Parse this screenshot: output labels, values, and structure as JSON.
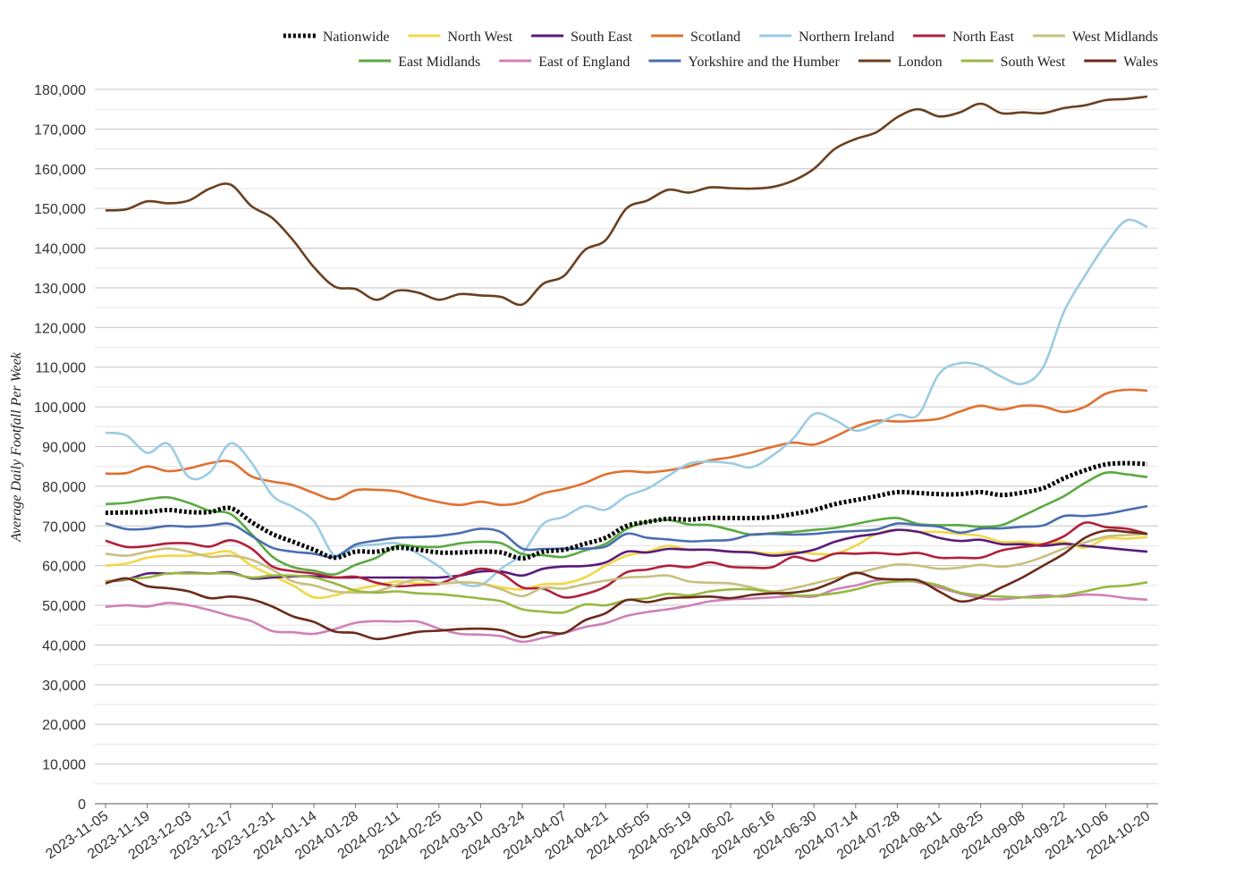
{
  "chart_data": {
    "type": "line",
    "title": "",
    "xlabel": "",
    "ylabel": "Average Daily Footfall Per Week",
    "ylim": [
      0,
      180000
    ],
    "y_ticks": [
      0,
      10000,
      20000,
      30000,
      40000,
      50000,
      60000,
      70000,
      80000,
      90000,
      100000,
      110000,
      120000,
      130000,
      140000,
      150000,
      160000,
      170000,
      180000
    ],
    "y_tick_labels": [
      "0",
      "10,000",
      "20,000",
      "30,000",
      "40,000",
      "50,000",
      "60,000",
      "70,000",
      "80,000",
      "90,000",
      "100,000",
      "110,000",
      "120,000",
      "130,000",
      "140,000",
      "150,000",
      "160,000",
      "170,000",
      "180,000"
    ],
    "x_tick_labels": [
      "2023-11-05",
      "2023-11-19",
      "2023-12-03",
      "2023-12-17",
      "2023-12-31",
      "2024-01-14",
      "2024-01-28",
      "2024-02-11",
      "2024-02-25",
      "2024-03-10",
      "2024-03-24",
      "2024-04-07",
      "2024-04-21",
      "2024-05-05",
      "2024-05-19",
      "2024-06-02",
      "2024-06-16",
      "2024-06-30",
      "2024-07-14",
      "2024-07-28",
      "2024-08-11",
      "2024-08-25",
      "2024-09-08",
      "2024-09-22",
      "2024-10-06",
      "2024-10-20"
    ],
    "grid": true,
    "legend_position": "top",
    "x": [
      "2023-11-05",
      "2023-11-12",
      "2023-11-19",
      "2023-11-26",
      "2023-12-03",
      "2023-12-10",
      "2023-12-17",
      "2023-12-24",
      "2023-12-31",
      "2024-01-07",
      "2024-01-14",
      "2024-01-21",
      "2024-01-28",
      "2024-02-04",
      "2024-02-11",
      "2024-02-18",
      "2024-02-25",
      "2024-03-03",
      "2024-03-10",
      "2024-03-17",
      "2024-03-24",
      "2024-03-31",
      "2024-04-07",
      "2024-04-14",
      "2024-04-21",
      "2024-04-28",
      "2024-05-05",
      "2024-05-12",
      "2024-05-19",
      "2024-05-26",
      "2024-06-02",
      "2024-06-09",
      "2024-06-16",
      "2024-06-23",
      "2024-06-30",
      "2024-07-07",
      "2024-07-14",
      "2024-07-21",
      "2024-07-28",
      "2024-08-04",
      "2024-08-11",
      "2024-08-18",
      "2024-08-25",
      "2024-09-01",
      "2024-09-08",
      "2024-09-15",
      "2024-09-22",
      "2024-09-29",
      "2024-10-06",
      "2024-10-13",
      "2024-10-20"
    ],
    "series": [
      {
        "name": "Nationwide",
        "color": "#000000",
        "dash": true,
        "values": [
          73300,
          73400,
          73500,
          74000,
          73500,
          73500,
          74500,
          71000,
          68000,
          66000,
          64000,
          62000,
          63500,
          63500,
          64500,
          64000,
          63300,
          63300,
          63500,
          63300,
          61800,
          63500,
          64000,
          65500,
          67000,
          70000,
          71000,
          71800,
          71600,
          72000,
          72000,
          72000,
          72200,
          73000,
          74000,
          75500,
          76500,
          77500,
          78500,
          78300,
          78000,
          78000,
          78500,
          77800,
          78400,
          79500,
          82000,
          84000,
          85500,
          85800,
          85600
        ]
      },
      {
        "name": "North West",
        "color": "#f0d848",
        "values": [
          60000,
          60500,
          62000,
          62500,
          62500,
          63000,
          63500,
          60000,
          57500,
          55000,
          52000,
          52500,
          54000,
          55000,
          56000,
          55500,
          55500,
          55800,
          55500,
          54500,
          54000,
          55300,
          55500,
          57000,
          60000,
          62500,
          63500,
          65000,
          64000,
          64000,
          63500,
          63500,
          63000,
          63500,
          63000,
          63000,
          65000,
          68000,
          69000,
          68500,
          68500,
          68000,
          67500,
          66000,
          66000,
          65500,
          66000,
          64500,
          66800,
          66800,
          67200
        ]
      },
      {
        "name": "South East",
        "color": "#5a1a7a",
        "values": [
          56000,
          56500,
          58000,
          58000,
          58200,
          58000,
          58300,
          56800,
          57000,
          57300,
          57300,
          57000,
          57000,
          57000,
          57000,
          57000,
          57000,
          57500,
          58500,
          58500,
          57500,
          59200,
          59800,
          59900,
          60800,
          63500,
          63300,
          64200,
          64000,
          64000,
          63500,
          63300,
          62500,
          63000,
          64000,
          66000,
          67300,
          68000,
          69000,
          68500,
          67000,
          66200,
          66500,
          65400,
          65400,
          65000,
          65500,
          65000,
          64500,
          64000,
          63500
        ]
      },
      {
        "name": "Scotland",
        "color": "#e07030",
        "values": [
          83200,
          83300,
          85000,
          83800,
          84500,
          85800,
          86200,
          82500,
          81200,
          80300,
          78300,
          76700,
          79000,
          79100,
          78700,
          77200,
          76000,
          75300,
          76100,
          75300,
          76000,
          78200,
          79300,
          80800,
          83000,
          83800,
          83500,
          84000,
          85000,
          86500,
          87300,
          88500,
          89900,
          91000,
          90500,
          92500,
          95000,
          96500,
          96300,
          96500,
          97000,
          98800,
          100300,
          99300,
          100300,
          100100,
          98700,
          100000,
          103300,
          104300,
          104100
        ]
      },
      {
        "name": "Northern Ireland",
        "color": "#9ccbe4",
        "values": [
          93500,
          92800,
          88400,
          90700,
          82300,
          83500,
          90800,
          86000,
          77700,
          74800,
          71200,
          62500,
          64800,
          65300,
          65600,
          63000,
          59800,
          55700,
          55100,
          59300,
          63000,
          70500,
          72300,
          75000,
          74100,
          77500,
          79400,
          82600,
          85700,
          86200,
          85800,
          84800,
          87700,
          92000,
          98200,
          96700,
          94000,
          95600,
          98000,
          98000,
          108300,
          111000,
          110400,
          107600,
          105800,
          110000,
          124000,
          133000,
          141000,
          147000,
          145300
        ]
      },
      {
        "name": "North East",
        "color": "#b0203a",
        "values": [
          66300,
          64700,
          64900,
          65600,
          65600,
          64800,
          66400,
          64300,
          59800,
          58600,
          58000,
          57000,
          57200,
          55700,
          54800,
          55100,
          55400,
          57500,
          59200,
          58000,
          54500,
          54200,
          52000,
          52800,
          54700,
          58300,
          59000,
          60000,
          59600,
          60800,
          59700,
          59500,
          59600,
          62200,
          61200,
          63000,
          63000,
          63200,
          62800,
          63200,
          62000,
          62000,
          62000,
          63800,
          64700,
          65400,
          67400,
          70800,
          69700,
          69300,
          68000
        ]
      },
      {
        "name": "West Midlands",
        "color": "#c8c080",
        "values": [
          63000,
          62500,
          63500,
          64300,
          63500,
          62200,
          62500,
          61500,
          59000,
          56000,
          55000,
          53500,
          53200,
          53500,
          55200,
          56500,
          55500,
          55800,
          55500,
          54000,
          52300,
          54400,
          54200,
          55300,
          56200,
          57000,
          57200,
          57500,
          56000,
          55700,
          55500,
          54500,
          53500,
          54300,
          55500,
          56800,
          58000,
          59300,
          60300,
          60000,
          59200,
          59500,
          60200,
          59700,
          60500,
          62200,
          64300,
          65800,
          67300,
          67700,
          68000
        ]
      },
      {
        "name": "East Midlands",
        "color": "#5aaa40",
        "values": [
          75500,
          75800,
          76700,
          77200,
          75800,
          73800,
          73000,
          68000,
          62300,
          59600,
          58700,
          57800,
          60200,
          62000,
          65000,
          64800,
          64700,
          65600,
          66000,
          65600,
          62900,
          62600,
          62200,
          63800,
          65500,
          69200,
          71000,
          71500,
          70400,
          70200,
          69000,
          67800,
          68200,
          68500,
          69000,
          69500,
          70500,
          71500,
          72000,
          70500,
          70200,
          70200,
          69800,
          70200,
          72500,
          75000,
          77500,
          80800,
          83400,
          83000,
          82300
        ]
      },
      {
        "name": "East of England",
        "color": "#d080b8",
        "values": [
          49600,
          50000,
          49700,
          50600,
          50000,
          48800,
          47300,
          46000,
          43500,
          43200,
          42800,
          44000,
          45600,
          46000,
          45900,
          45900,
          44100,
          42800,
          42600,
          42200,
          40800,
          41800,
          43000,
          44500,
          45500,
          47300,
          48300,
          49000,
          49900,
          51000,
          51500,
          51700,
          52000,
          52300,
          52200,
          54000,
          55000,
          56300,
          56500,
          55800,
          54500,
          53000,
          51800,
          51500,
          52000,
          52500,
          52200,
          52700,
          52500,
          51800,
          51400
        ]
      },
      {
        "name": "Yorkshire and the Humber",
        "color": "#4a6eb0",
        "values": [
          70700,
          69200,
          69300,
          70000,
          69800,
          70100,
          70500,
          67500,
          64500,
          63500,
          63000,
          62200,
          65300,
          66300,
          67000,
          67200,
          67500,
          68200,
          69300,
          68400,
          64300,
          64200,
          64300,
          64300,
          64800,
          68000,
          67000,
          66600,
          66100,
          66300,
          66500,
          67800,
          68000,
          67800,
          68000,
          68500,
          68700,
          69100,
          70600,
          70200,
          69800,
          68300,
          69300,
          69400,
          69800,
          70100,
          72500,
          72500,
          73000,
          74000,
          75000
        ]
      },
      {
        "name": "London",
        "color": "#6a4020",
        "values": [
          149500,
          149800,
          151800,
          151300,
          152000,
          155000,
          156000,
          150600,
          147600,
          142000,
          135200,
          130300,
          129700,
          127000,
          129300,
          128800,
          127000,
          128400,
          128100,
          127700,
          125800,
          131000,
          133000,
          139500,
          142000,
          150000,
          152000,
          154700,
          154000,
          155300,
          155100,
          155000,
          155400,
          157000,
          160000,
          165000,
          167500,
          169200,
          173000,
          175000,
          173200,
          174200,
          176400,
          174000,
          174200,
          174000,
          175300,
          176000,
          177300,
          177600,
          178200
        ]
      },
      {
        "name": "South West",
        "color": "#98b840",
        "values": [
          56000,
          56600,
          57000,
          58000,
          58000,
          58000,
          58000,
          57000,
          57500,
          57500,
          57000,
          55500,
          53700,
          53200,
          53500,
          53000,
          52800,
          52300,
          51700,
          51000,
          49000,
          48400,
          48200,
          50200,
          50000,
          51300,
          51800,
          52900,
          52500,
          53500,
          54000,
          54000,
          53200,
          52500,
          52500,
          53000,
          54000,
          55400,
          56000,
          56000,
          55000,
          53200,
          52500,
          52200,
          52000,
          52000,
          52500,
          53500,
          54600,
          55000,
          55800
        ]
      },
      {
        "name": "Wales",
        "color": "#6a2a1a",
        "values": [
          55500,
          56800,
          54800,
          54300,
          53500,
          51800,
          52200,
          51500,
          49700,
          47200,
          45800,
          43400,
          43000,
          41500,
          42300,
          43300,
          43600,
          44000,
          44100,
          43700,
          42000,
          43200,
          43000,
          46200,
          48000,
          51300,
          50800,
          51800,
          52000,
          52200,
          51800,
          52600,
          53000,
          53200,
          54000,
          56000,
          58200,
          56800,
          56500,
          56300,
          53500,
          51000,
          52000,
          54500,
          57000,
          60000,
          63000,
          67000,
          68800,
          68500,
          68000
        ]
      }
    ]
  }
}
